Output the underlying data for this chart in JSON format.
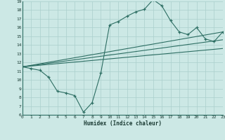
{
  "xlabel": "Humidex (Indice chaleur)",
  "bg_color": "#cce8e5",
  "line_color": "#2d6e63",
  "grid_color": "#aacfcc",
  "xlim": [
    0,
    23
  ],
  "ylim": [
    6,
    19
  ],
  "xticks": [
    0,
    1,
    2,
    3,
    4,
    5,
    6,
    7,
    8,
    9,
    10,
    11,
    12,
    13,
    14,
    15,
    16,
    17,
    18,
    19,
    20,
    21,
    22,
    23
  ],
  "yticks": [
    6,
    7,
    8,
    9,
    10,
    11,
    12,
    13,
    14,
    15,
    16,
    17,
    18,
    19
  ],
  "series": [
    [
      0,
      11.5
    ],
    [
      1,
      11.3
    ],
    [
      2,
      11.1
    ],
    [
      3,
      10.3
    ],
    [
      4,
      8.7
    ],
    [
      5,
      8.5
    ],
    [
      6,
      8.2
    ],
    [
      7,
      6.3
    ],
    [
      8,
      7.4
    ],
    [
      9,
      10.8
    ],
    [
      10,
      16.3
    ],
    [
      11,
      16.7
    ],
    [
      12,
      17.3
    ],
    [
      13,
      17.8
    ],
    [
      14,
      18.1
    ],
    [
      15,
      19.2
    ],
    [
      16,
      18.5
    ],
    [
      17,
      16.8
    ],
    [
      18,
      15.5
    ],
    [
      19,
      15.2
    ],
    [
      20,
      16.0
    ],
    [
      21,
      14.7
    ],
    [
      22,
      14.4
    ],
    [
      23,
      15.5
    ]
  ],
  "regression_lines": [
    {
      "x0": 0,
      "y0": 11.5,
      "x1": 23,
      "y1": 15.5
    },
    {
      "x0": 0,
      "y0": 11.5,
      "x1": 23,
      "y1": 14.6
    },
    {
      "x0": 0,
      "y0": 11.5,
      "x1": 23,
      "y1": 13.6
    }
  ]
}
